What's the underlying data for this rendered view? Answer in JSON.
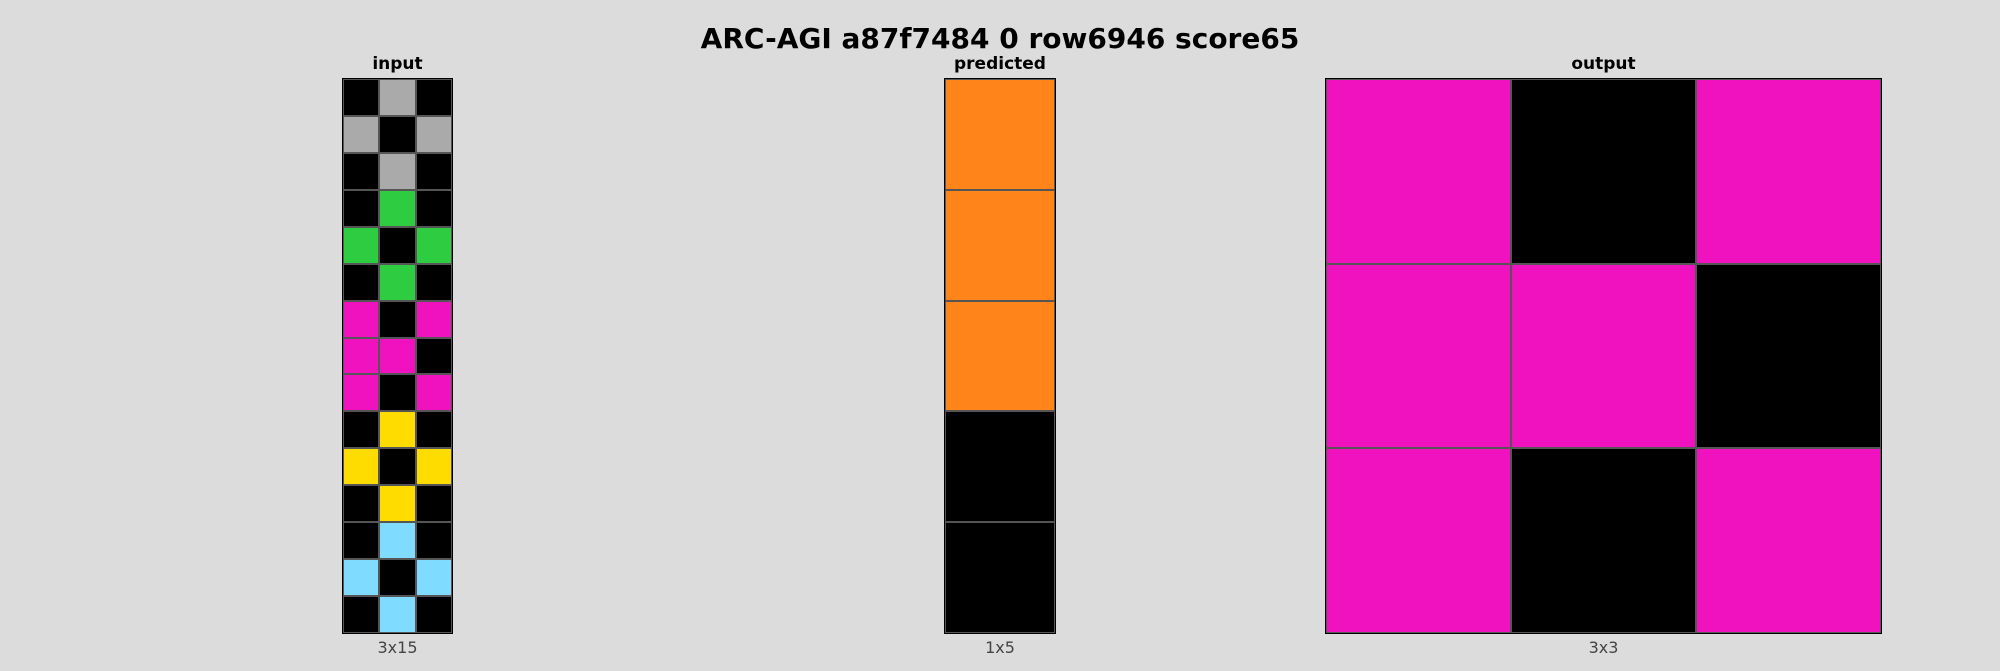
{
  "title": "ARC-AGI a87f7484 0 row6946 score65",
  "palette": {
    "0": "#000000",
    "3": "#2ecc40",
    "4": "#ffdc00",
    "5": "#aaaaaa",
    "6": "#f012be",
    "7": "#ff851b",
    "8": "#7fdbff"
  },
  "panels": [
    {
      "label": "input",
      "dims": "3x15",
      "cols": 3,
      "rows": 15,
      "cells": [
        [
          0,
          5,
          0
        ],
        [
          5,
          0,
          5
        ],
        [
          0,
          5,
          0
        ],
        [
          0,
          3,
          0
        ],
        [
          3,
          0,
          3
        ],
        [
          0,
          3,
          0
        ],
        [
          6,
          0,
          6
        ],
        [
          6,
          6,
          0
        ],
        [
          6,
          0,
          6
        ],
        [
          0,
          4,
          0
        ],
        [
          4,
          0,
          4
        ],
        [
          0,
          4,
          0
        ],
        [
          0,
          8,
          0
        ],
        [
          8,
          0,
          8
        ],
        [
          0,
          8,
          0
        ]
      ]
    },
    {
      "label": "predicted",
      "dims": "1x5",
      "cols": 1,
      "rows": 5,
      "cells": [
        [
          7
        ],
        [
          7
        ],
        [
          7
        ],
        [
          0
        ],
        [
          0
        ]
      ]
    },
    {
      "label": "output",
      "dims": "3x3",
      "cols": 3,
      "rows": 3,
      "cells": [
        [
          6,
          0,
          6
        ],
        [
          6,
          6,
          0
        ],
        [
          6,
          0,
          6
        ]
      ]
    }
  ]
}
